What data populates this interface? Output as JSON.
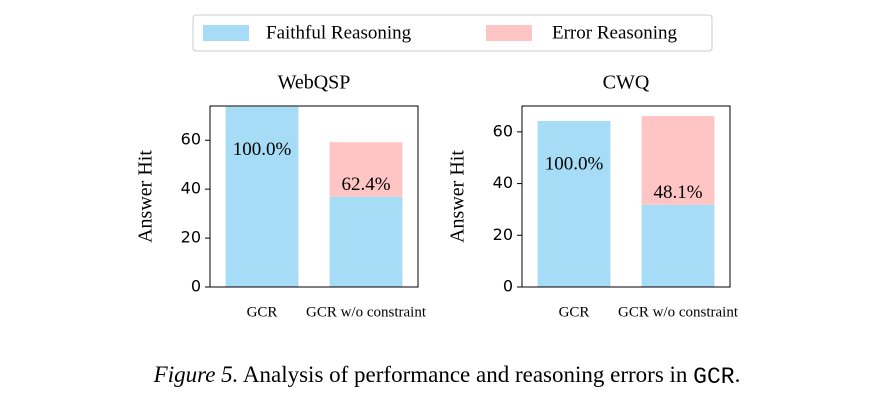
{
  "chart_data": [
    {
      "type": "stacked_bar",
      "title": "WebQSP",
      "ylabel": "Answer Hit",
      "categories": [
        "GCR",
        "GCR w/o constraint"
      ],
      "series": [
        {
          "name": "Faithful Reasoning",
          "color": "#a6dcf5",
          "values": [
            73.7,
            36.9
          ]
        },
        {
          "name": "Error Reasoning",
          "color": "#ffc4c4",
          "values": [
            null,
            22.3
          ]
        }
      ],
      "annotations": [
        "100.0%",
        "62.4%"
      ],
      "ylim": [
        0,
        74
      ],
      "yticks": [
        0,
        20,
        40,
        60
      ]
    },
    {
      "type": "stacked_bar",
      "title": "CWQ",
      "ylabel": "Answer Hit",
      "categories": [
        "GCR",
        "GCR w/o constraint"
      ],
      "series": [
        {
          "name": "Faithful Reasoning",
          "color": "#a6dcf5",
          "values": [
            64.2,
            31.8
          ]
        },
        {
          "name": "Error Reasoning",
          "color": "#ffc4c4",
          "values": [
            null,
            34.3
          ]
        }
      ],
      "annotations": [
        "100.0%",
        "48.1%"
      ],
      "ylim": [
        0,
        70
      ],
      "yticks": [
        0,
        20,
        40,
        60
      ]
    }
  ],
  "caption": {
    "label": "Figure 5.",
    "text": "Analysis of performance and reasoning errors in",
    "code": "GCR",
    "end": "."
  }
}
